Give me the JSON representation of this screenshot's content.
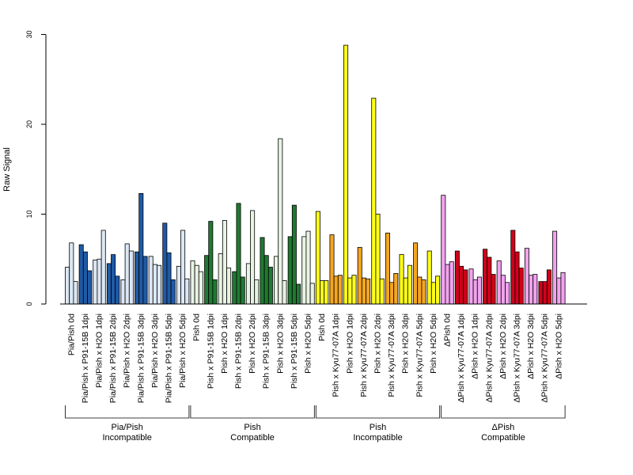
{
  "chart_data": {
    "type": "bar",
    "ylabel": "Raw Signal",
    "xlabel": "",
    "ylim": [
      0,
      30
    ],
    "yticks": [
      0,
      10,
      20,
      30
    ],
    "grid": false,
    "replicates_per_category": 3,
    "categories": [
      "Pia/Pish 0d",
      "Pia/Pish x P91-15B 1dpi",
      "Pia/Pish x H2O 1dpi",
      "Pia/Pish x P91-15B 2dpi",
      "Pia/Pish x H2O 2dpi",
      "Pia/Pish x P91-15B 3dpi",
      "Pia/Pish x H2O 3dpi",
      "Pia/Pish x P91-15B 5dpi",
      "Pia/Pish x H2O 5dpi",
      "Pish 0d",
      "Pish x P91-15B 1dpi",
      "Pish x H2O 1dpi",
      "Pish x P91-15B 2dpi",
      "Pish x H2O 2dpi",
      "Pish x P91-15B 3dpi",
      "Pish x H2O 3dpi",
      "Pish x P91-15B 5dpi",
      "Pish x H2O 5dpi",
      "Pish 0d",
      "Pish x Kyu77-07A 1dpi",
      "Pish x H2O 1dpi",
      "Pish x Kyu77-07A 2dpi",
      "Pish x H2O 2dpi",
      "Pish x Kyu77-07A 3dpi",
      "Pish x H2O 3dpi",
      "Pish x Kyu77-07A 5dpi",
      "Pish x H2O 5dpi",
      "ΔPish 0d",
      "ΔPish x Kyu77-07A 1dpi",
      "ΔPish x H2O 1dpi",
      "ΔPish x Kyu77-07A 2dpi",
      "ΔPish x H2O 2dpi",
      "ΔPish x Kyu77-07A 3dpi",
      "ΔPish x H2O 3dpi",
      "ΔPish x Kyu77-07A 5dpi",
      "ΔPish x H2O 5dpi"
    ],
    "values": [
      [
        4.1,
        6.8,
        2.5
      ],
      [
        6.6,
        5.8,
        3.7
      ],
      [
        4.9,
        5.0,
        8.2
      ],
      [
        4.5,
        5.5,
        3.1
      ],
      [
        2.7,
        6.7,
        5.9
      ],
      [
        5.8,
        12.3,
        5.3
      ],
      [
        5.3,
        4.4,
        4.3
      ],
      [
        9.0,
        5.7,
        2.7
      ],
      [
        4.2,
        8.2,
        2.8
      ],
      [
        4.8,
        4.3,
        3.6
      ],
      [
        5.4,
        9.2,
        2.7
      ],
      [
        5.6,
        9.3,
        4.0
      ],
      [
        3.6,
        11.2,
        3.0
      ],
      [
        4.5,
        10.4,
        2.7
      ],
      [
        7.4,
        5.4,
        4.1
      ],
      [
        5.3,
        18.4,
        2.6
      ],
      [
        7.5,
        11.0,
        2.2
      ],
      [
        7.5,
        8.1,
        2.3
      ],
      [
        10.3,
        2.6,
        2.6
      ],
      [
        7.7,
        3.1,
        3.2
      ],
      [
        28.8,
        2.9,
        3.2
      ],
      [
        6.3,
        2.9,
        2.8
      ],
      [
        22.9,
        10.0,
        2.8
      ],
      [
        7.9,
        2.4,
        3.4
      ],
      [
        5.5,
        2.9,
        4.3
      ],
      [
        6.8,
        3.0,
        2.7
      ],
      [
        5.9,
        2.4,
        3.1
      ],
      [
        12.1,
        4.4,
        4.7
      ],
      [
        5.9,
        4.2,
        3.8
      ],
      [
        3.9,
        2.7,
        3.0
      ],
      [
        6.1,
        5.2,
        3.3
      ],
      [
        4.8,
        3.2,
        2.4
      ],
      [
        8.2,
        5.8,
        4.0
      ],
      [
        6.2,
        3.2,
        3.3
      ],
      [
        2.5,
        2.5,
        3.8
      ],
      [
        8.1,
        2.9,
        3.5
      ]
    ],
    "category_colors": [
      "#dbe7f4",
      "#1f5aa6",
      "#dbe7f4",
      "#1f5aa6",
      "#dbe7f4",
      "#1f5aa6",
      "#dbe7f4",
      "#1f5aa6",
      "#dbe7f4",
      "#e8f3e3",
      "#1f7a32",
      "#e8f3e3",
      "#1f7a32",
      "#e8f3e3",
      "#1f7a32",
      "#e8f3e3",
      "#1f7a32",
      "#e8f3e3",
      "#ffff1a",
      "#f4a521",
      "#ffff1a",
      "#f4a521",
      "#ffff1a",
      "#f4a521",
      "#ffff1a",
      "#f4a521",
      "#ffff1a",
      "#f1a3ee",
      "#d0021b",
      "#f1a3ee",
      "#d0021b",
      "#f1a3ee",
      "#d0021b",
      "#f1a3ee",
      "#d0021b",
      "#f1a3ee"
    ],
    "groups": [
      {
        "line1": "Pia/Pish",
        "line2": "Incompatible",
        "start": 0,
        "end": 8
      },
      {
        "line1": "Pish",
        "line2": "Compatible",
        "start": 9,
        "end": 17
      },
      {
        "line1": "Pish",
        "line2": "Incompatible",
        "start": 18,
        "end": 26
      },
      {
        "line1": "ΔPish",
        "line2": "Compatible",
        "start": 27,
        "end": 35
      }
    ]
  }
}
